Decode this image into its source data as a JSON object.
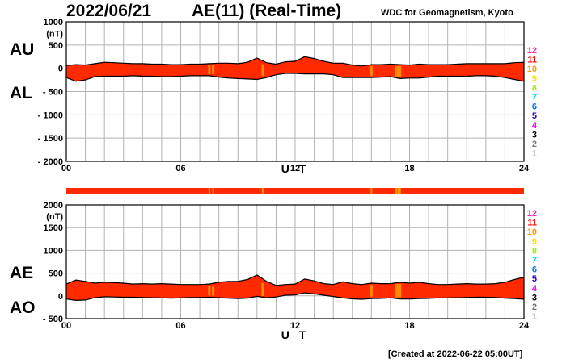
{
  "header": {
    "date": "2022/06/21",
    "title": "AE(11) (Real-Time)",
    "org": "WDC for Geomagnetism, Kyoto"
  },
  "footer": {
    "created": "[Created at 2022-06-22 05:00UT]"
  },
  "labels": {
    "au": "AU",
    "al": "AL",
    "ae": "AE",
    "ao": "AO"
  },
  "colors": {
    "fill": "#ff2a00",
    "highlight": "#ff9a00",
    "outline": "#000000",
    "grid": "#b3b3b3"
  },
  "station_scale": [
    {
      "label": "12",
      "color": "#ff2aa0"
    },
    {
      "label": "11",
      "color": "#ff0000"
    },
    {
      "label": "10",
      "color": "#ff9900"
    },
    {
      "label": "9",
      "color": "#ffe000"
    },
    {
      "label": "8",
      "color": "#99ee00"
    },
    {
      "label": "7",
      "color": "#00e0e0"
    },
    {
      "label": "6",
      "color": "#0077ff"
    },
    {
      "label": "5",
      "color": "#2200cc"
    },
    {
      "label": "4",
      "color": "#ee00ee"
    },
    {
      "label": "3",
      "color": "#000000"
    },
    {
      "label": "2",
      "color": "#777777"
    },
    {
      "label": "1",
      "color": "#cccccc"
    }
  ],
  "chart_data": [
    {
      "type": "area",
      "panel": "AU/AL",
      "yunit": "(nT)",
      "xlabel": "U T",
      "xlim": [
        0,
        24
      ],
      "ylim": [
        -2000,
        1000
      ],
      "yticks": [
        1000,
        500,
        0,
        -500,
        -1000,
        -1500,
        -2000
      ],
      "ytick_labels": [
        "1000",
        "500",
        "0",
        "- 500",
        "- 1000",
        "- 1500",
        "- 2000"
      ],
      "xticks": [
        0,
        6,
        12,
        18,
        24
      ],
      "xtick_labels": [
        "00",
        "06",
        "12",
        "18",
        "24"
      ],
      "grid": true,
      "x": [
        0,
        0.5,
        1,
        1.5,
        2,
        2.5,
        3,
        3.5,
        4,
        4.5,
        5,
        5.5,
        6,
        6.5,
        7,
        7.5,
        8,
        8.5,
        9,
        9.5,
        10,
        10.5,
        11,
        11.5,
        12,
        12.5,
        13,
        13.5,
        14,
        14.5,
        15,
        15.5,
        16,
        16.5,
        17,
        17.5,
        18,
        18.5,
        19,
        19.5,
        20,
        20.5,
        21,
        21.5,
        22,
        22.5,
        23,
        23.5,
        24
      ],
      "series": [
        {
          "name": "AU",
          "values": [
            60,
            80,
            70,
            100,
            130,
            120,
            110,
            100,
            100,
            90,
            90,
            80,
            80,
            90,
            90,
            100,
            110,
            110,
            100,
            130,
            220,
            120,
            90,
            140,
            150,
            250,
            210,
            150,
            110,
            110,
            70,
            50,
            80,
            80,
            90,
            80,
            70,
            90,
            80,
            80,
            80,
            90,
            100,
            100,
            100,
            100,
            100,
            120,
            130
          ]
        },
        {
          "name": "AL",
          "values": [
            -200,
            -280,
            -250,
            -180,
            -170,
            -170,
            -170,
            -160,
            -170,
            -170,
            -180,
            -180,
            -170,
            -160,
            -160,
            -160,
            -190,
            -210,
            -220,
            -230,
            -240,
            -200,
            -140,
            -110,
            -110,
            -120,
            -120,
            -120,
            -140,
            -200,
            -200,
            -200,
            -200,
            -190,
            -180,
            -220,
            -210,
            -210,
            -190,
            -170,
            -170,
            -170,
            -170,
            -160,
            -160,
            -170,
            -200,
            -240,
            -280
          ]
        }
      ],
      "highlights_ut": [
        7.5,
        7.7,
        10.3,
        16.0,
        17.3,
        17.4,
        17.5
      ]
    },
    {
      "type": "area",
      "panel": "AE/AO",
      "yunit": "(nT)",
      "xlabel": "U T",
      "xlim": [
        0,
        24
      ],
      "ylim": [
        -500,
        2000
      ],
      "yticks": [
        2000,
        1500,
        1000,
        500,
        0,
        -500
      ],
      "ytick_labels": [
        "2000",
        "1500",
        "1000",
        "500",
        "0",
        "- 500"
      ],
      "xticks": [
        0,
        6,
        12,
        18,
        24
      ],
      "xtick_labels": [
        "00",
        "06",
        "12",
        "18",
        "24"
      ],
      "grid": true,
      "x": [
        0,
        0.5,
        1,
        1.5,
        2,
        2.5,
        3,
        3.5,
        4,
        4.5,
        5,
        5.5,
        6,
        6.5,
        7,
        7.5,
        8,
        8.5,
        9,
        9.5,
        10,
        10.5,
        11,
        11.5,
        12,
        12.5,
        13,
        13.5,
        14,
        14.5,
        15,
        15.5,
        16,
        16.5,
        17,
        17.5,
        18,
        18.5,
        19,
        19.5,
        20,
        20.5,
        21,
        21.5,
        22,
        22.5,
        23,
        23.5,
        24
      ],
      "series": [
        {
          "name": "AE",
          "values": [
            260,
            350,
            320,
            280,
            300,
            290,
            280,
            260,
            270,
            260,
            270,
            260,
            250,
            250,
            250,
            260,
            300,
            320,
            320,
            360,
            460,
            320,
            230,
            250,
            260,
            370,
            330,
            270,
            250,
            310,
            270,
            250,
            280,
            270,
            270,
            300,
            280,
            300,
            270,
            250,
            250,
            260,
            270,
            260,
            260,
            270,
            300,
            360,
            410
          ]
        },
        {
          "name": "AO",
          "values": [
            -70,
            -100,
            -90,
            -40,
            -20,
            -25,
            -30,
            -30,
            -35,
            -40,
            -45,
            -50,
            -45,
            -35,
            -35,
            -30,
            -40,
            -50,
            -60,
            -50,
            -10,
            -40,
            -25,
            15,
            20,
            65,
            45,
            15,
            -15,
            -45,
            -65,
            -75,
            -60,
            -55,
            -45,
            -70,
            -70,
            -60,
            -55,
            -45,
            -45,
            -40,
            -35,
            -30,
            -30,
            -35,
            -50,
            -60,
            -75
          ]
        }
      ],
      "highlights_ut": [
        7.5,
        7.7,
        10.3,
        16.0,
        17.3,
        17.4,
        17.5
      ]
    }
  ]
}
